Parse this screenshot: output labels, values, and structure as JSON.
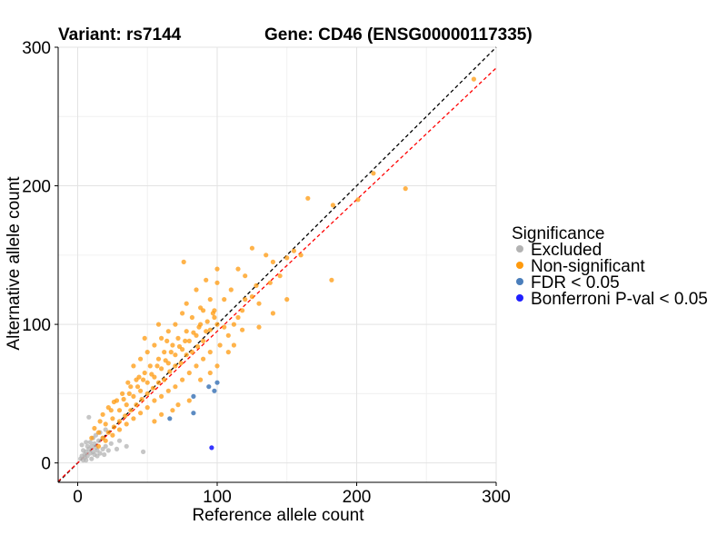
{
  "chart_data": {
    "type": "scatter",
    "title_left": "Variant: rs7144",
    "title_right": "Gene: CD46 (ENSG00000117335)",
    "xlabel": "Reference allele count",
    "ylabel": "Alternative allele count",
    "xlim": [
      -14,
      300
    ],
    "ylim": [
      -14,
      300
    ],
    "xticks": [
      0,
      100,
      200,
      300
    ],
    "yticks": [
      0,
      100,
      200,
      300
    ],
    "grid": true,
    "legend_placement": "right",
    "legend": {
      "title": "Significance",
      "entries": [
        {
          "label": "Excluded",
          "color": "#b3b3b3"
        },
        {
          "label": "Non-significant",
          "color": "#ff9a0d"
        },
        {
          "label": "FDR < 0.05",
          "color": "#4a7ebb"
        },
        {
          "label": "Bonferroni P-val < 0.05",
          "color": "#1f1fff"
        }
      ]
    },
    "reference_lines": [
      {
        "style": "dashed",
        "color": "#000000",
        "slope": 1.0,
        "intercept": 0
      },
      {
        "style": "dashed",
        "color": "#ff0000",
        "slope": 0.95,
        "intercept": 0
      }
    ],
    "series": [
      {
        "name": "Excluded",
        "color": "#b3b3b3",
        "points": [
          [
            2,
            3
          ],
          [
            3,
            5
          ],
          [
            4,
            2
          ],
          [
            5,
            6
          ],
          [
            5,
            4
          ],
          [
            6,
            8
          ],
          [
            7,
            5
          ],
          [
            8,
            10
          ],
          [
            9,
            7
          ],
          [
            10,
            12
          ],
          [
            11,
            8
          ],
          [
            12,
            14
          ],
          [
            13,
            11
          ],
          [
            14,
            9
          ],
          [
            15,
            16
          ],
          [
            8,
            33
          ],
          [
            3,
            13
          ],
          [
            6,
            15
          ],
          [
            10,
            3
          ],
          [
            12,
            6
          ],
          [
            14,
            5
          ],
          [
            16,
            7
          ],
          [
            18,
            10
          ],
          [
            20,
            12
          ],
          [
            22,
            9
          ],
          [
            24,
            14
          ],
          [
            28,
            10
          ],
          [
            30,
            16
          ],
          [
            35,
            12
          ],
          [
            47,
            8
          ],
          [
            4,
            9
          ],
          [
            7,
            12
          ],
          [
            9,
            15
          ],
          [
            11,
            18
          ],
          [
            13,
            20
          ],
          [
            16,
            22
          ],
          [
            18,
            18
          ],
          [
            20,
            24
          ],
          [
            6,
            2
          ],
          [
            19,
            6
          ]
        ]
      },
      {
        "name": "Non-significant",
        "color": "#ff9a0d",
        "points": [
          [
            284,
            277
          ],
          [
            235,
            198
          ],
          [
            212,
            209
          ],
          [
            201,
            190
          ],
          [
            183,
            186
          ],
          [
            182,
            132
          ],
          [
            165,
            191
          ],
          [
            155,
            153
          ],
          [
            150,
            148
          ],
          [
            140,
            145
          ],
          [
            135,
            150
          ],
          [
            125,
            155
          ],
          [
            128,
            128
          ],
          [
            130,
            115
          ],
          [
            120,
            135
          ],
          [
            115,
            140
          ],
          [
            118,
            110
          ],
          [
            110,
            125
          ],
          [
            105,
            118
          ],
          [
            100,
            130
          ],
          [
            98,
            105
          ],
          [
            95,
            118
          ],
          [
            92,
            95
          ],
          [
            90,
            110
          ],
          [
            88,
            100
          ],
          [
            85,
            92
          ],
          [
            82,
            105
          ],
          [
            80,
            88
          ],
          [
            78,
            95
          ],
          [
            75,
            82
          ],
          [
            72,
            90
          ],
          [
            70,
            78
          ],
          [
            68,
            85
          ],
          [
            65,
            72
          ],
          [
            62,
            80
          ],
          [
            60,
            68
          ],
          [
            58,
            75
          ],
          [
            55,
            62
          ],
          [
            52,
            70
          ],
          [
            50,
            58
          ],
          [
            48,
            65
          ],
          [
            45,
            52
          ],
          [
            42,
            60
          ],
          [
            40,
            48
          ],
          [
            38,
            55
          ],
          [
            35,
            42
          ],
          [
            32,
            50
          ],
          [
            30,
            38
          ],
          [
            28,
            45
          ],
          [
            25,
            32
          ],
          [
            22,
            40
          ],
          [
            20,
            28
          ],
          [
            18,
            35
          ],
          [
            15,
            22
          ],
          [
            12,
            25
          ],
          [
            10,
            18
          ],
          [
            105,
            98
          ],
          [
            108,
            92
          ],
          [
            112,
            100
          ],
          [
            115,
            105
          ],
          [
            102,
            85
          ],
          [
            95,
            80
          ],
          [
            90,
            75
          ],
          [
            85,
            70
          ],
          [
            80,
            65
          ],
          [
            75,
            60
          ],
          [
            70,
            55
          ],
          [
            65,
            52
          ],
          [
            60,
            48
          ],
          [
            55,
            45
          ],
          [
            50,
            40
          ],
          [
            45,
            36
          ],
          [
            40,
            32
          ],
          [
            35,
            28
          ],
          [
            30,
            24
          ],
          [
            25,
            20
          ],
          [
            20,
            16
          ],
          [
            15,
            12
          ],
          [
            62,
            60
          ],
          [
            66,
            66
          ],
          [
            70,
            70
          ],
          [
            74,
            72
          ],
          [
            78,
            78
          ],
          [
            82,
            80
          ],
          [
            86,
            84
          ],
          [
            90,
            88
          ],
          [
            58,
            58
          ],
          [
            54,
            54
          ],
          [
            50,
            50
          ],
          [
            46,
            46
          ],
          [
            42,
            42
          ],
          [
            38,
            38
          ],
          [
            34,
            34
          ],
          [
            30,
            30
          ],
          [
            26,
            26
          ],
          [
            22,
            22
          ],
          [
            18,
            18
          ],
          [
            100,
            100
          ],
          [
            95,
            96
          ],
          [
            120,
            118
          ],
          [
            125,
            120
          ],
          [
            138,
            130
          ],
          [
            145,
            135
          ],
          [
            160,
            150
          ],
          [
            100,
            70
          ],
          [
            95,
            65
          ],
          [
            88,
            60
          ],
          [
            80,
            45
          ],
          [
            72,
            42
          ],
          [
            68,
            38
          ],
          [
            60,
            35
          ],
          [
            55,
            30
          ],
          [
            70,
            100
          ],
          [
            65,
            95
          ],
          [
            60,
            90
          ],
          [
            55,
            85
          ],
          [
            50,
            80
          ],
          [
            45,
            75
          ],
          [
            40,
            70
          ],
          [
            48,
            90
          ],
          [
            58,
            100
          ],
          [
            78,
            115
          ],
          [
            85,
            125
          ],
          [
            92,
            132
          ],
          [
            100,
            140
          ],
          [
            76,
            145
          ],
          [
            112,
            85
          ],
          [
            118,
            96
          ],
          [
            130,
            98
          ],
          [
            140,
            108
          ],
          [
            150,
            118
          ],
          [
            108,
            80
          ],
          [
            98,
            110
          ],
          [
            88,
            112
          ],
          [
            75,
            108
          ],
          [
            64,
            88
          ],
          [
            44,
            62
          ],
          [
            36,
            58
          ],
          [
            26,
            44
          ],
          [
            24,
            38
          ],
          [
            16,
            30
          ],
          [
            33,
            46
          ],
          [
            37,
            50
          ],
          [
            43,
            55
          ],
          [
            47,
            60
          ],
          [
            53,
            64
          ],
          [
            57,
            70
          ],
          [
            63,
            74
          ],
          [
            67,
            80
          ],
          [
            73,
            84
          ],
          [
            77,
            88
          ],
          [
            83,
            94
          ],
          [
            87,
            98
          ],
          [
            93,
            102
          ],
          [
            97,
            108
          ]
        ]
      },
      {
        "name": "FDR < 0.05",
        "color": "#4a7ebb",
        "points": [
          [
            100,
            58
          ],
          [
            98,
            52
          ],
          [
            94,
            55
          ],
          [
            83,
            48
          ],
          [
            83,
            36
          ],
          [
            66,
            32
          ]
        ]
      },
      {
        "name": "Bonferroni P-val < 0.05",
        "color": "#1f1fff",
        "points": [
          [
            96,
            11
          ]
        ]
      }
    ]
  }
}
